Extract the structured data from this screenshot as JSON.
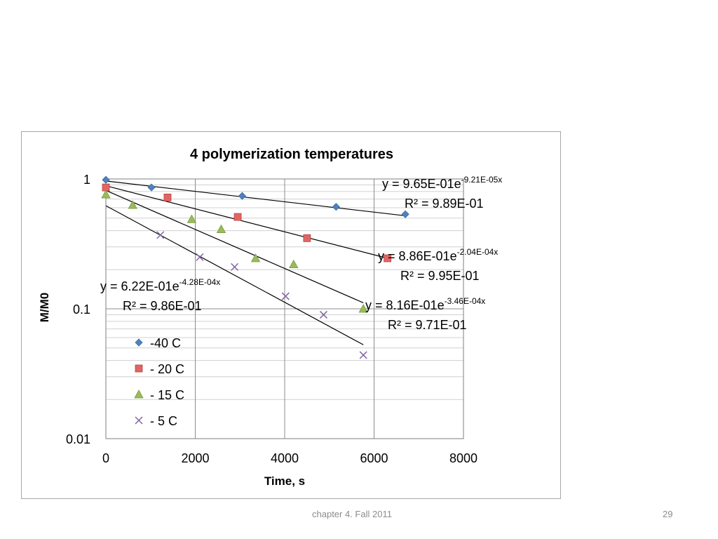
{
  "footer": {
    "text": "chapter 4. Fall 2011",
    "page": "29"
  },
  "chart_data": {
    "type": "scatter",
    "title": "4 polymerization temperatures",
    "xlabel": "Time, s",
    "ylabel": "M/M0",
    "xlim": [
      0,
      8000
    ],
    "ylim": [
      0.01,
      1
    ],
    "yscale": "log",
    "grid": true,
    "legend_position": "bottom-left",
    "x_ticks": [
      "0",
      "2000",
      "4000",
      "6000",
      "8000"
    ],
    "y_ticks": [
      "0.01",
      "0.1",
      "1"
    ],
    "series": [
      {
        "name": "-40 C",
        "marker": "diamond",
        "color": "#4f81bd",
        "x": [
          0,
          1020,
          3050,
          5150,
          6700
        ],
        "y": [
          0.985,
          0.86,
          0.74,
          0.61,
          0.535
        ],
        "trendline": {
          "a": 0.965,
          "b": -9.21e-05,
          "x_end": 6700
        },
        "equation": {
          "base": "y = 9.65E-01e",
          "exp": "-9.21E-05x",
          "r2": "R² = 9.89E-01"
        }
      },
      {
        "name": "- 20 C",
        "marker": "square",
        "color": "#e06666",
        "x": [
          0,
          1380,
          2950,
          4500,
          6300
        ],
        "y": [
          0.86,
          0.72,
          0.51,
          0.35,
          0.245
        ],
        "trendline": {
          "a": 0.886,
          "b": -0.000204,
          "x_end": 6300
        },
        "equation": {
          "base": "y = 8.86E-01e",
          "exp": "-2.04E-04x",
          "r2": "R² = 9.95E-01"
        }
      },
      {
        "name": "- 15 C",
        "marker": "triangle",
        "color": "#9bbb59",
        "x": [
          0,
          600,
          1920,
          2580,
          3350,
          4200,
          5760
        ],
        "y": [
          0.76,
          0.63,
          0.49,
          0.41,
          0.245,
          0.22,
          0.1
        ],
        "trendline": {
          "a": 0.816,
          "b": -0.000346,
          "x_end": 5760
        },
        "equation": {
          "base": "y = 8.16E-01e",
          "exp": "-3.46E-04x",
          "r2": "R² = 9.71E-01"
        }
      },
      {
        "name": "- 5 C",
        "marker": "x",
        "color": "#8064a2",
        "x": [
          1220,
          2100,
          2880,
          4020,
          4870,
          5760
        ],
        "y": [
          0.37,
          0.25,
          0.21,
          0.125,
          0.09,
          0.044
        ],
        "trendline": {
          "a": 0.622,
          "b": -0.000428,
          "x_end": 5760
        },
        "equation": {
          "base": "y = 6.22E-01e",
          "exp": "-4.28E-04x",
          "r2": "R² = 9.86E-01"
        }
      }
    ]
  }
}
